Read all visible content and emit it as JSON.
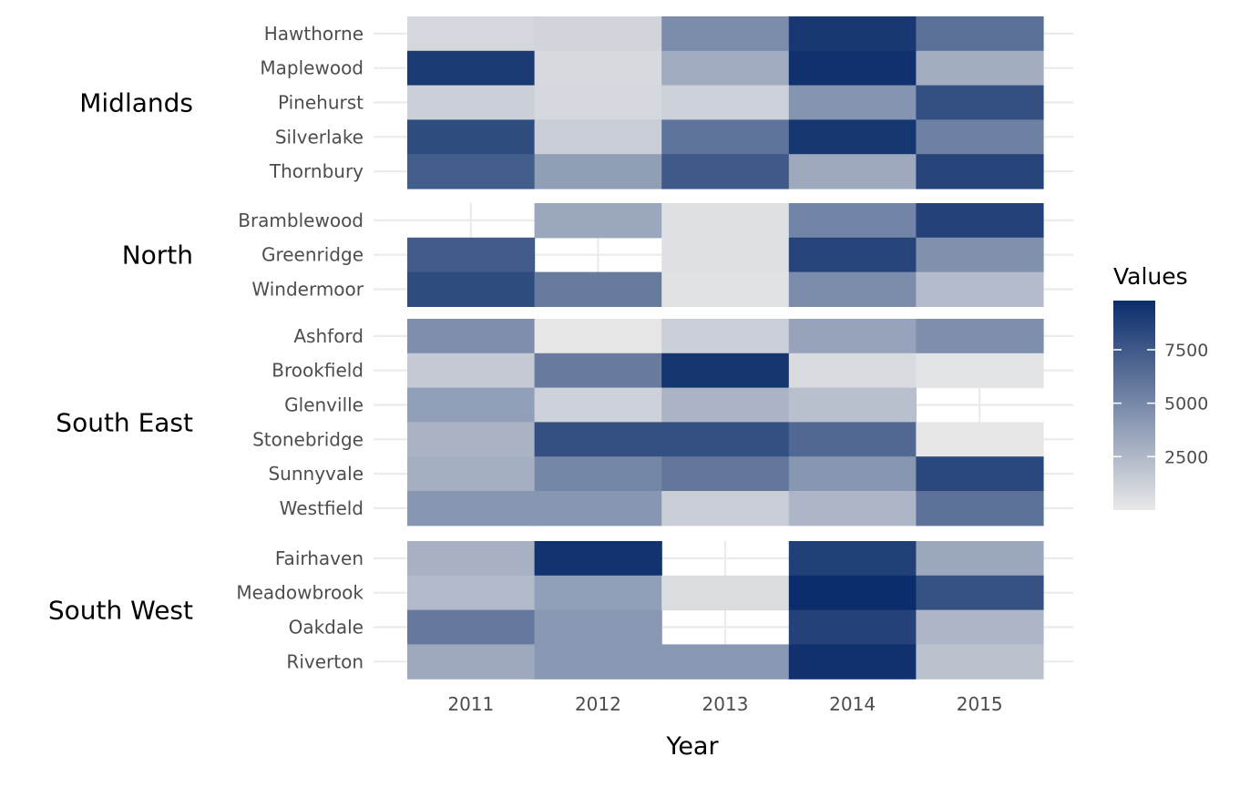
{
  "chart_data": {
    "type": "heatmap",
    "xlabel": "Year",
    "ylabel": "",
    "x": [
      "2011",
      "2012",
      "2013",
      "2014",
      "2015"
    ],
    "legend": {
      "title": "Values",
      "ticks": [
        2500,
        5000,
        7500
      ],
      "tick_labels": [
        "2500",
        "5000",
        "7500"
      ],
      "min": 0,
      "max": 9800,
      "low_color": "#e8e8e8",
      "high_color": "#0b2d6b",
      "placement": "right"
    },
    "grid": true,
    "groups": [
      {
        "name": "Midlands",
        "rows": [
          {
            "label": "Hawthorne",
            "values": [
              900,
              1000,
              4800,
              9200,
              6300
            ]
          },
          {
            "label": "Maplewood",
            "values": [
              9100,
              800,
              3200,
              9600,
              3100
            ]
          },
          {
            "label": "Pinehurst",
            "values": [
              1300,
              900,
              1200,
              4400,
              8000
            ]
          },
          {
            "label": "Silverlake",
            "values": [
              8200,
              1400,
              6100,
              9300,
              5400
            ]
          },
          {
            "label": "Thornbury",
            "values": [
              7300,
              3900,
              7500,
              3300,
              8600
            ]
          }
        ]
      },
      {
        "name": "North",
        "rows": [
          {
            "label": "Bramblewood",
            "values": [
              null,
              3400,
              400,
              5200,
              8700
            ]
          },
          {
            "label": "Greenridge",
            "values": [
              7400,
              null,
              400,
              8600,
              4600
            ]
          },
          {
            "label": "Windermoor",
            "values": [
              8200,
              5700,
              300,
              4800,
              2300
            ]
          }
        ]
      },
      {
        "name": "South East",
        "rows": [
          {
            "label": "Ashford",
            "values": [
              4700,
              100,
              1300,
              3600,
              4700
            ]
          },
          {
            "label": "Brookfield",
            "values": [
              1600,
              5700,
              9400,
              700,
              200
            ]
          },
          {
            "label": "Glenville",
            "values": [
              3800,
              1200,
              2700,
              2100,
              null
            ]
          },
          {
            "label": "Stonebridge",
            "values": [
              2800,
              8000,
              8000,
              6700,
              100
            ]
          },
          {
            "label": "Sunnyvale",
            "values": [
              3000,
              5100,
              5900,
              4300,
              8400
            ]
          },
          {
            "label": "Westfield",
            "values": [
              4300,
              4300,
              1400,
              2600,
              6200
            ]
          }
        ]
      },
      {
        "name": "South West",
        "rows": [
          {
            "label": "Fairhaven",
            "values": [
              2900,
              9500,
              null,
              8800,
              3400
            ]
          },
          {
            "label": "Meadowbrook",
            "values": [
              2400,
              3800,
              600,
              9800,
              7900
            ]
          },
          {
            "label": "Oakdale",
            "values": [
              5800,
              4200,
              null,
              8700,
              2600
            ]
          },
          {
            "label": "Riverton",
            "values": [
              3300,
              4200,
              4200,
              9600,
              2000
            ]
          }
        ]
      }
    ]
  }
}
